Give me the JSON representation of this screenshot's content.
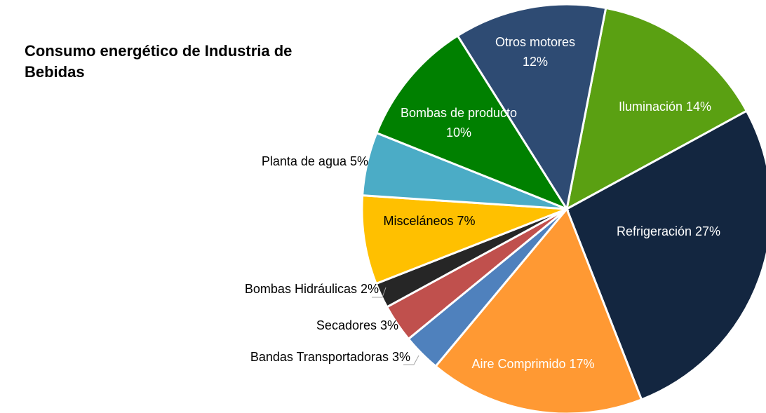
{
  "chart_data": {
    "type": "pie",
    "title": "Consumo energético de Industria de Bebidas",
    "categories": [
      "Iluminación",
      "Refrigeración",
      "Aire Comprimido",
      "Bandas Transportadoras",
      "Secadores",
      "Bombas Hidráulicas",
      "Misceláneos",
      "Planta de agua",
      "Bombas de producto",
      "Otros motores"
    ],
    "values": [
      14,
      27,
      17,
      3,
      3,
      2,
      7,
      5,
      10,
      12
    ],
    "value_labels": [
      "14%",
      "27%",
      "17%",
      "3%",
      "3%",
      "2%",
      "7%",
      "5%",
      "10%",
      "12%"
    ],
    "colors": [
      "#5aa012",
      "#132640",
      "#ff9933",
      "#4f81bd",
      "#c0504d",
      "#262626",
      "#ffc000",
      "#4bacc6",
      "#008000",
      "#2e4b73"
    ]
  }
}
